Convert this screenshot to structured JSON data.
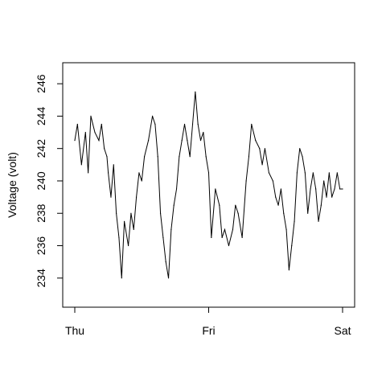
{
  "chart_data": {
    "type": "line",
    "title": "",
    "xlabel": "",
    "ylabel": "Voltage (volt)",
    "x_ticks": [
      "Thu",
      "Fri",
      "Sat"
    ],
    "y_ticks": [
      234,
      236,
      238,
      240,
      242,
      244,
      246
    ],
    "xlim": [
      0,
      2
    ],
    "ylim": [
      232.5,
      247
    ],
    "grid": false,
    "legend": "none",
    "series": [
      {
        "color": "#000000",
        "x": [
          0.0,
          0.02,
          0.05,
          0.08,
          0.1,
          0.12,
          0.15,
          0.18,
          0.2,
          0.22,
          0.24,
          0.25,
          0.27,
          0.29,
          0.31,
          0.33,
          0.35,
          0.37,
          0.4,
          0.42,
          0.44,
          0.46,
          0.48,
          0.5,
          0.52,
          0.55,
          0.58,
          0.6,
          0.62,
          0.64,
          0.66,
          0.68,
          0.7,
          0.72,
          0.74,
          0.76,
          0.78,
          0.8,
          0.82,
          0.84,
          0.86,
          0.88,
          0.9,
          0.92,
          0.94,
          0.96,
          0.98,
          1.0,
          1.02,
          1.05,
          1.08,
          1.1,
          1.12,
          1.15,
          1.18,
          1.2,
          1.22,
          1.25,
          1.28,
          1.3,
          1.32,
          1.35,
          1.38,
          1.4,
          1.42,
          1.45,
          1.48,
          1.5,
          1.52,
          1.54,
          1.56,
          1.58,
          1.6,
          1.62,
          1.64,
          1.66,
          1.68,
          1.7,
          1.72,
          1.74,
          1.76,
          1.78,
          1.8,
          1.82,
          1.84,
          1.86,
          1.88,
          1.9,
          1.92,
          1.94,
          1.96,
          1.98,
          2.0
        ],
        "y": [
          242.5,
          243.5,
          241.0,
          243.0,
          240.5,
          244.0,
          243.0,
          242.5,
          243.5,
          242.0,
          241.5,
          240.5,
          239.0,
          241.0,
          238.0,
          236.5,
          234.0,
          237.5,
          236.0,
          238.0,
          237.0,
          239.0,
          240.5,
          240.0,
          241.5,
          242.5,
          244.0,
          243.5,
          241.5,
          238.0,
          236.5,
          235.0,
          234.0,
          237.0,
          238.5,
          239.5,
          241.5,
          242.5,
          243.5,
          242.5,
          241.5,
          243.5,
          245.5,
          243.5,
          242.5,
          243.0,
          241.5,
          240.5,
          236.5,
          239.5,
          238.5,
          236.5,
          237.0,
          236.0,
          237.0,
          238.5,
          238.0,
          236.5,
          240.0,
          241.5,
          243.5,
          242.5,
          242.0,
          241.0,
          242.0,
          240.5,
          240.0,
          239.0,
          238.5,
          239.5,
          238.0,
          237.0,
          234.5,
          236.0,
          237.5,
          240.5,
          242.0,
          241.5,
          240.5,
          238.0,
          239.5,
          240.5,
          239.5,
          237.5,
          238.5,
          240.0,
          239.0,
          240.5,
          239.0,
          239.5,
          240.5,
          239.5,
          239.5
        ]
      }
    ]
  }
}
